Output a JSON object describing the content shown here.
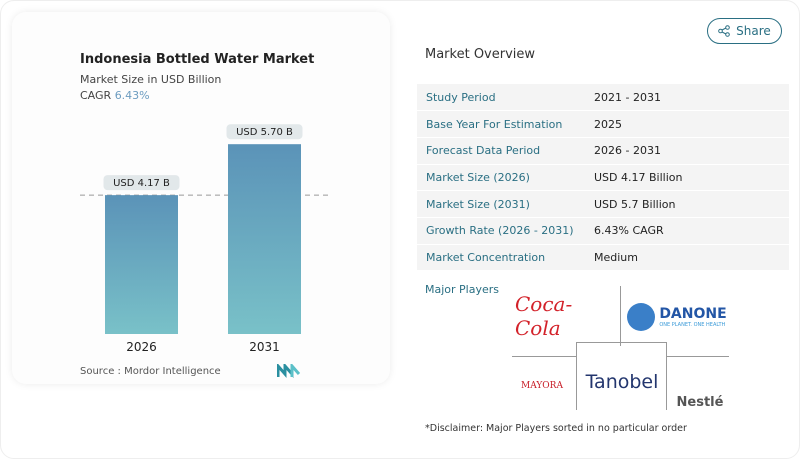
{
  "header": {
    "share_label": "Share",
    "share_icon": "share-icon"
  },
  "chart_data": {
    "type": "bar",
    "title": "Indonesia Bottled Water Market",
    "subtitle": "Market Size in USD Billion",
    "cagr_label": "CAGR",
    "cagr_value": "6.43%",
    "categories": [
      "2026",
      "2031"
    ],
    "values": [
      4.17,
      5.7
    ],
    "data_labels": [
      "USD 4.17 B",
      "USD 5.70 B"
    ],
    "reference_line": 4.17,
    "colors": {
      "bar_top": "#5b93b8",
      "bar_bottom": "#79c1c8",
      "cagr": "#6c9cc0"
    }
  },
  "source": "Source :  Mordor Intelligence",
  "overview": {
    "title": "Market Overview",
    "rows": [
      {
        "label": "Study Period",
        "value": "2021 - 2031"
      },
      {
        "label": "Base Year For Estimation",
        "value": "2025"
      },
      {
        "label": "Forecast Data Period",
        "value": "2026 - 2031"
      },
      {
        "label": "Market Size (2026)",
        "value": "USD 4.17 Billion"
      },
      {
        "label": "Market Size (2031)",
        "value": "USD 5.7 Billion"
      },
      {
        "label": "Growth Rate (2026 - 2031)",
        "value": "6.43% CAGR"
      },
      {
        "label": "Market Concentration",
        "value": "Medium"
      }
    ]
  },
  "major_players": {
    "title": "Major Players",
    "logos": [
      "Coca-Cola",
      "DANONE",
      "ONE PLANET. ONE HEALTH",
      "MAYORA",
      "Tanobel",
      "Nestlé"
    ]
  },
  "disclaimer": "*Disclaimer: Major Players sorted in no particular order"
}
